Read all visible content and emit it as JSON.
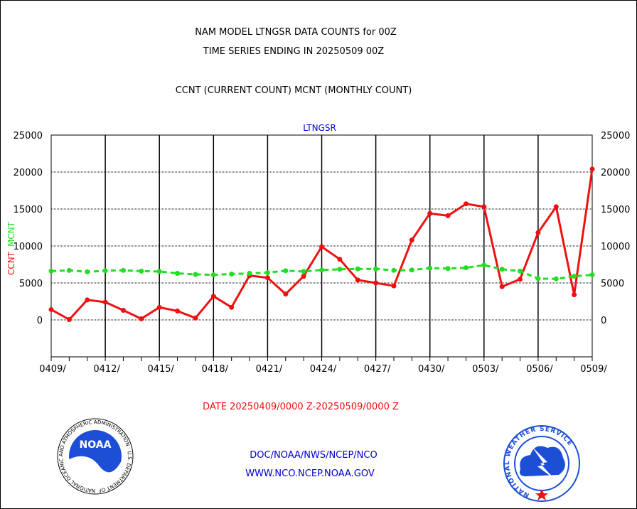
{
  "header": {
    "title_line1": "NAM MODEL LTNGSR DATA COUNTS for 00Z",
    "title_line2": "TIME SERIES ENDING IN 20250509 00Z",
    "subtitle": "CCNT (CURRENT COUNT) MCNT (MONTHLY COUNT)"
  },
  "footer": {
    "date_range": "DATE 20250409/0000 Z-20250509/0000 Z",
    "org": "DOC/NOAA/NWS/NCEP/NCO",
    "url": "WWW.NCO.NCEP.NOAA.GOV"
  },
  "logos": {
    "noaa_text": "NOAA",
    "noaa_ring": "NATIONAL OCEANIC AND ATMOSPHERIC ADMINISTRATION · U.S. DEPARTMENT OF COMMERCE",
    "nws_ring": "NATIONAL WEATHER SERVICE"
  },
  "colors": {
    "ccnt": "#ee1111",
    "mcnt": "#22dd22",
    "title_blue": "#0000cc",
    "date_red": "#ee1111",
    "grid": "#000000"
  },
  "chart_data": {
    "type": "line",
    "title": "LTNGSR",
    "ylabel_parts": [
      "CCNT",
      "MCNT"
    ],
    "ylim": [
      -5000,
      25000
    ],
    "yticks": [
      0,
      5000,
      10000,
      15000,
      20000,
      25000
    ],
    "ytick_labels": [
      "0",
      "5000",
      "10000",
      "15000",
      "20000",
      "25000"
    ],
    "xtick_labels": [
      "0409/",
      "0412/",
      "0415/",
      "0418/",
      "0421/",
      "0424/",
      "0427/",
      "0430/",
      "0503/",
      "0506/",
      "0509/"
    ],
    "x": [
      "0409",
      "0410",
      "0411",
      "0412",
      "0413",
      "0414",
      "0415",
      "0416",
      "0417",
      "0418",
      "0419",
      "0420",
      "0421",
      "0422",
      "0423",
      "0424",
      "0425",
      "0426",
      "0427",
      "0428",
      "0429",
      "0430",
      "0501",
      "0502",
      "0503",
      "0504",
      "0505",
      "0506",
      "0507",
      "0508",
      "0509"
    ],
    "grid": true,
    "series": [
      {
        "name": "CCNT",
        "style": "solid",
        "values": [
          1400,
          50,
          2700,
          2400,
          1300,
          150,
          1700,
          1200,
          250,
          3200,
          1700,
          6000,
          5700,
          3500,
          5900,
          9900,
          8200,
          5400,
          5000,
          4600,
          10800,
          14400,
          14100,
          15700,
          15300,
          4500,
          5500,
          11800,
          15300,
          3400,
          20400
        ]
      },
      {
        "name": "MCNT",
        "style": "dashed",
        "values": [
          6600,
          6700,
          6500,
          6650,
          6700,
          6600,
          6550,
          6300,
          6150,
          6100,
          6200,
          6300,
          6400,
          6650,
          6550,
          6750,
          6850,
          6900,
          6900,
          6700,
          6750,
          7000,
          6950,
          7050,
          7400,
          6850,
          6600,
          5600,
          5550,
          5900,
          6100
        ]
      }
    ]
  }
}
